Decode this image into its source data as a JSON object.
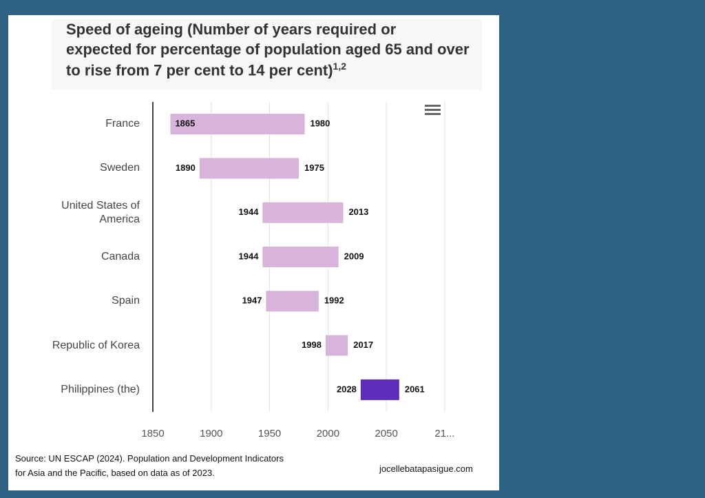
{
  "chart_data": {
    "type": "range-bar",
    "title_lines": [
      "Speed of ageing (Number of years required or",
      "expected for percentage of population aged 65 and over",
      "to rise from 7 per cent to 14 per cent)"
    ],
    "title_superscript": "1,2",
    "categories": [
      "France",
      "Sweden",
      "United States of America",
      "Canada",
      "Spain",
      "Republic of Korea",
      "Philippines (the)"
    ],
    "start": [
      1865,
      1890,
      1944,
      1944,
      1947,
      1998,
      2028
    ],
    "end": [
      1980,
      1975,
      2013,
      2009,
      1992,
      2017,
      2061
    ],
    "colors": [
      "#d8b3da",
      "#d8b3da",
      "#d8b3da",
      "#d8b3da",
      "#d8b3da",
      "#d8b3da",
      "#5e2dbb"
    ],
    "xlim": [
      1850,
      2100
    ],
    "xticks": [
      1850,
      1900,
      1950,
      2000,
      2050,
      {
        "value": 2100,
        "label": "21..."
      }
    ],
    "grid": true
  },
  "source_lines": [
    "Source: UN ESCAP (2024). Population and Development Indicators",
    "for Asia and the Pacific, based on data as of 2023."
  ],
  "credit": "jocellebatapasigue.com"
}
